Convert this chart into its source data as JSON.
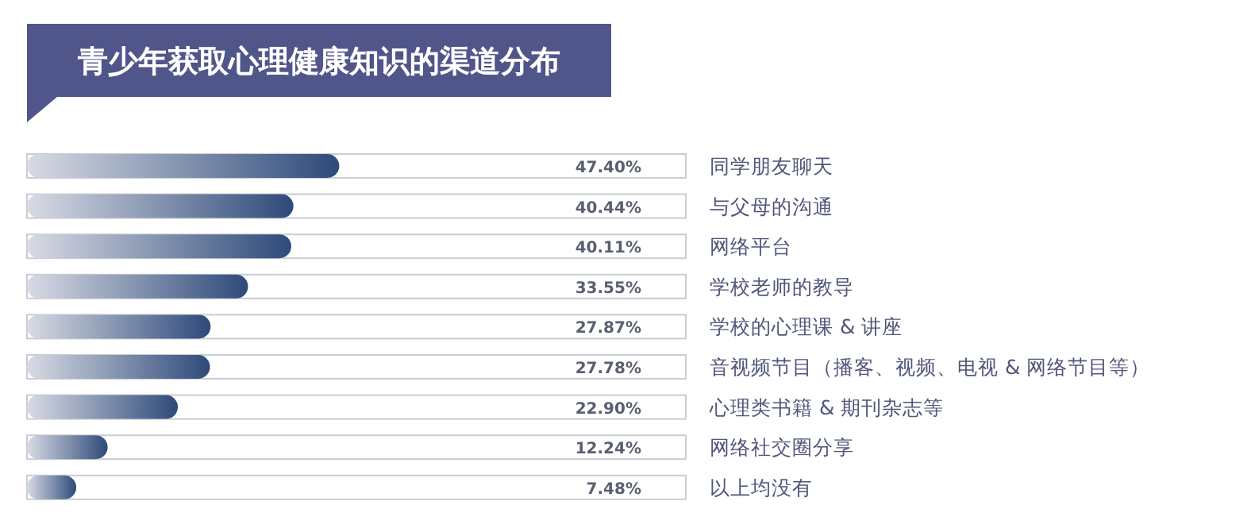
{
  "chart_data": {
    "type": "bar",
    "orientation": "horizontal",
    "title": "青少年获取心理健康知识的渠道分布",
    "categories": [
      "同学朋友聊天",
      "与父母的沟通",
      "网络平台",
      "学校老师的教导",
      "学校的心理课 & 讲座",
      "音视频节目（播客、视频、电视 & 网络节目等）",
      "心理类书籍 & 期刊杂志等",
      "网络社交圈分享",
      "以上均没有"
    ],
    "values": [
      47.4,
      40.44,
      40.11,
      33.55,
      27.87,
      27.78,
      22.9,
      12.24,
      7.48
    ],
    "value_labels": [
      "47.40%",
      "40.44%",
      "40.11%",
      "33.55%",
      "27.87%",
      "27.78%",
      "22.90%",
      "12.24%",
      "7.48%"
    ],
    "color": "#2e4a7a",
    "xlim": [
      0,
      100
    ]
  }
}
